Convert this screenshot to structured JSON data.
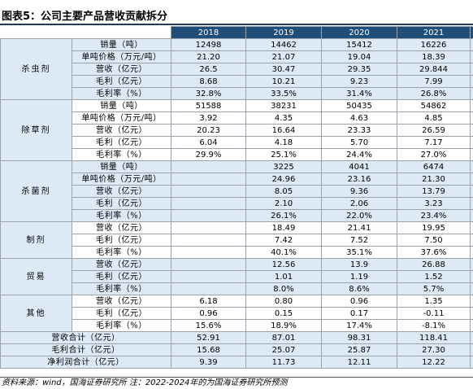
{
  "title": "图表5：公司主要产品营收贡献拆分",
  "years": [
    "2018",
    "2019",
    "2020",
    "2021",
    ""
  ],
  "groups": [
    {
      "name": "杀虫剂",
      "rows": [
        {
          "label": "销量（吨）",
          "values": [
            "12498",
            "14462",
            "15412",
            "16226",
            ""
          ]
        },
        {
          "label": "单吨价格（万元/吨）",
          "values": [
            "21.20",
            "21.07",
            "19.04",
            "18.39",
            ""
          ]
        },
        {
          "label": "营收（亿元）",
          "values": [
            "26.5",
            "30.47",
            "29.35",
            "29.844",
            ""
          ]
        },
        {
          "label": "毛利（亿元）",
          "values": [
            "8.68",
            "10.21",
            "9.23",
            "7.99",
            ""
          ]
        },
        {
          "label": "毛利率（%）",
          "values": [
            "32.8%",
            "33.5%",
            "31.4%",
            "26.8%",
            ""
          ]
        }
      ]
    },
    {
      "name": "除草剂",
      "rows": [
        {
          "label": "销量（吨）",
          "values": [
            "51588",
            "38231",
            "50435",
            "54862",
            ""
          ]
        },
        {
          "label": "单吨价格（万元/吨）",
          "values": [
            "3.92",
            "4.35",
            "4.63",
            "4.85",
            ""
          ]
        },
        {
          "label": "营收（亿元）",
          "values": [
            "20.23",
            "16.64",
            "23.33",
            "26.59",
            ""
          ]
        },
        {
          "label": "毛利（亿元）",
          "values": [
            "6.04",
            "4.18",
            "5.70",
            "7.17",
            ""
          ]
        },
        {
          "label": "毛利率（%）",
          "values": [
            "29.9%",
            "25.1%",
            "24.4%",
            "27.0%",
            ""
          ]
        }
      ]
    },
    {
      "name": "杀菌剂",
      "rows": [
        {
          "label": "销量（吨）",
          "values": [
            "",
            "3225",
            "4041",
            "6474",
            ""
          ]
        },
        {
          "label": "单吨价格（万元/吨）",
          "values": [
            "",
            "24.96",
            "23.16",
            "21.30",
            ""
          ]
        },
        {
          "label": "营收（亿元）",
          "values": [
            "",
            "8.05",
            "9.36",
            "13.79",
            ""
          ]
        },
        {
          "label": "毛利（亿元）",
          "values": [
            "",
            "2.10",
            "2.06",
            "3.23",
            ""
          ]
        },
        {
          "label": "毛利率（%）",
          "values": [
            "",
            "26.1%",
            "22.0%",
            "23.4%",
            ""
          ]
        }
      ]
    },
    {
      "name": "制剂",
      "rows": [
        {
          "label": "营收（亿元）",
          "values": [
            "",
            "18.49",
            "21.41",
            "19.95",
            ""
          ]
        },
        {
          "label": "毛利（亿元）",
          "values": [
            "",
            "7.42",
            "7.52",
            "7.50",
            ""
          ]
        },
        {
          "label": "毛利率（%）",
          "values": [
            "",
            "40.1%",
            "35.1%",
            "37.6%",
            ""
          ]
        }
      ]
    },
    {
      "name": "贸易",
      "rows": [
        {
          "label": "营收（亿元）",
          "values": [
            "",
            "12.56",
            "13.9",
            "26.88",
            ""
          ]
        },
        {
          "label": "毛利（亿元）",
          "values": [
            "",
            "1.01",
            "1.19",
            "1.52",
            ""
          ]
        },
        {
          "label": "毛利率（%）",
          "values": [
            "",
            "8.0%",
            "8.6%",
            "5.7%",
            ""
          ]
        }
      ]
    },
    {
      "name": "其他",
      "rows": [
        {
          "label": "营收（亿元）",
          "values": [
            "6.18",
            "0.80",
            "0.96",
            "1.35",
            ""
          ]
        },
        {
          "label": "毛利（亿元）",
          "values": [
            "0.96",
            "0.15",
            "0.17",
            "-0.11",
            ""
          ]
        },
        {
          "label": "毛利率（%）",
          "values": [
            "15.6%",
            "18.9%",
            "17.4%",
            "-8.1%",
            ""
          ]
        }
      ]
    }
  ],
  "totals": [
    {
      "label": "营收合计（亿元）",
      "values": [
        "52.91",
        "87.01",
        "98.31",
        "118.41",
        ""
      ]
    },
    {
      "label": "毛利合计（亿元）",
      "values": [
        "15.68",
        "25.07",
        "25.87",
        "27.30",
        ""
      ]
    },
    {
      "label": "净利润合计（亿元）",
      "values": [
        "9.39",
        "11.73",
        "12.11",
        "12.22",
        ""
      ]
    }
  ],
  "source": "资料来源：wind，国海证券研究所 注：2022-2024年的为国海证券研究所预测",
  "colors": {
    "header_bg": "#1f4e79",
    "band_bg": "#dde9f7",
    "border": "#9aa3ad"
  }
}
